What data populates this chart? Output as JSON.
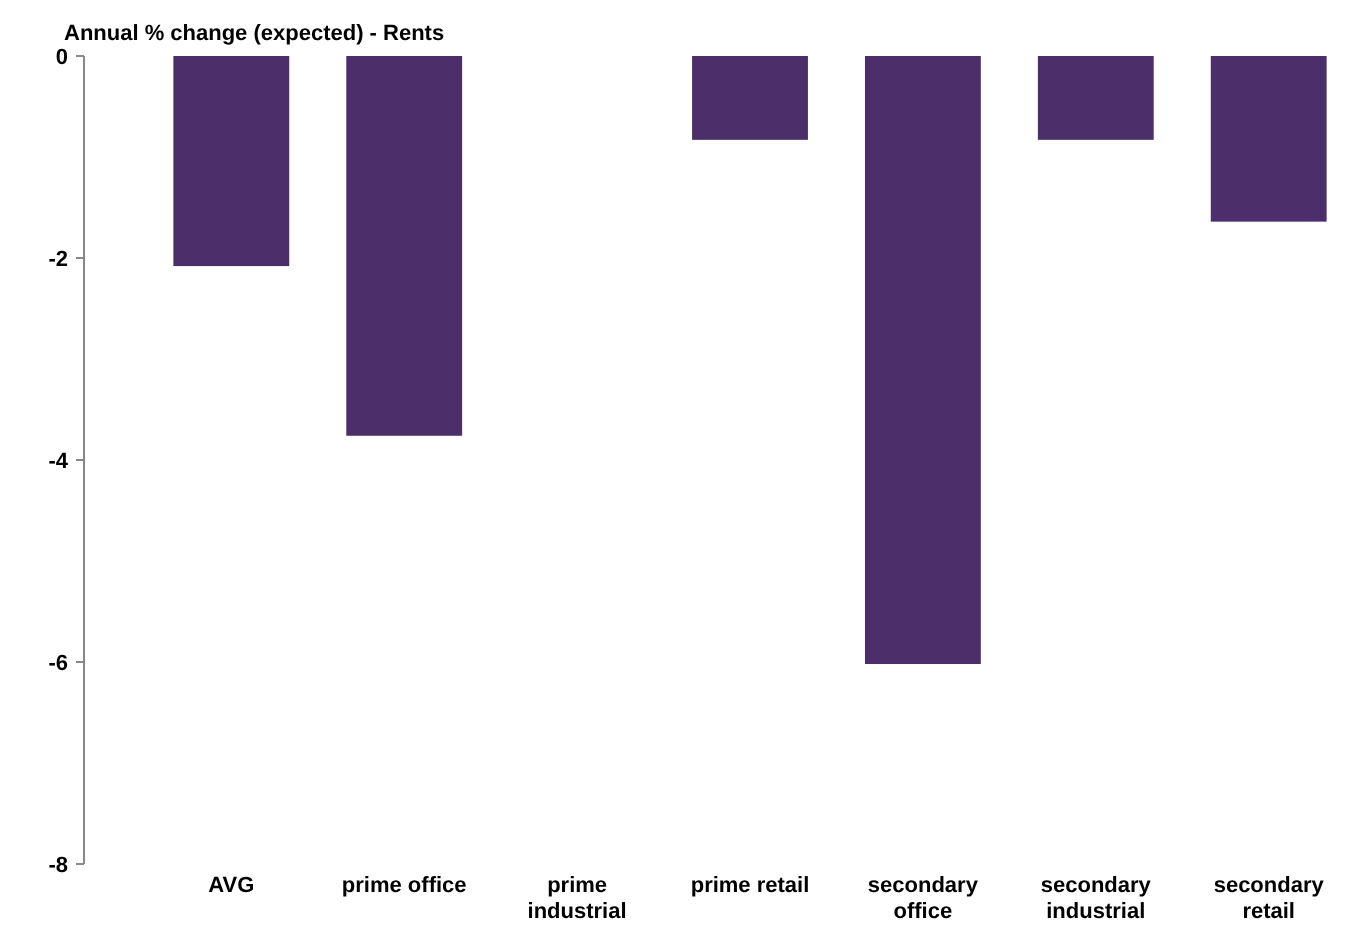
{
  "chart_data": {
    "type": "bar",
    "title": "Annual % change (expected) - Rents",
    "categories": [
      "AVG",
      "prime office",
      "prime industrial",
      "prime retail",
      "secondary office",
      "secondary industrial",
      "secondary retail"
    ],
    "values": [
      -2.08,
      -3.76,
      0,
      -0.83,
      -6.02,
      -0.83,
      -1.64
    ],
    "color": "#4b2e6a",
    "ylim": [
      -8,
      0
    ],
    "yticks": [
      -8,
      -6,
      -4,
      -2,
      0
    ],
    "grid": false
  }
}
